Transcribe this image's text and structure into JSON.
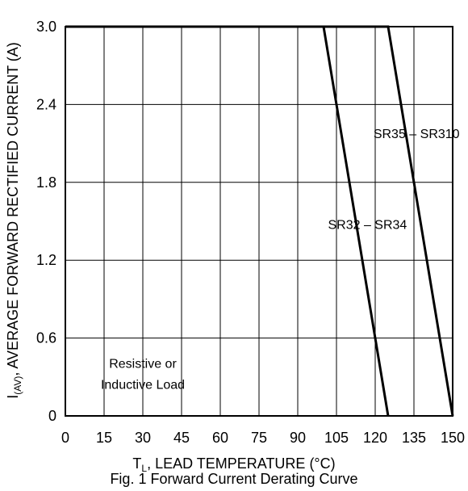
{
  "chart_data": {
    "type": "line",
    "title": "",
    "caption": "Fig. 1 Forward Current Derating Curve",
    "xlabel": {
      "main": "T",
      "sub": "L",
      "rest": ", LEAD TEMPERATURE (°C)"
    },
    "ylabel": {
      "main": "I",
      "sub": "(AV)",
      "rest": ", AVERAGE FORWARD RECTIFIED CURRENT (A)"
    },
    "xlim": [
      0,
      150
    ],
    "ylim": [
      0,
      3.0
    ],
    "x_ticks": [
      "0",
      "15",
      "30",
      "45",
      "60",
      "75",
      "90",
      "105",
      "120",
      "135",
      "150"
    ],
    "y_ticks": [
      "0",
      "0.6",
      "1.2",
      "1.8",
      "2.4",
      "3.0"
    ],
    "grid": true,
    "series": [
      {
        "name": "SR32 – SR34",
        "x": [
          0,
          100,
          125
        ],
        "y": [
          3.0,
          3.0,
          0
        ]
      },
      {
        "name": "SR35 – SR310",
        "x": [
          0,
          125,
          150
        ],
        "y": [
          3.0,
          3.0,
          0
        ]
      }
    ],
    "annotations": [
      {
        "text": "SR35 – SR310",
        "x": 136,
        "y": 2.14
      },
      {
        "text": "SR32 – SR34",
        "x": 117,
        "y": 1.44
      },
      {
        "text": "Resistive or",
        "x": 30,
        "y": 0.37
      },
      {
        "text": "Inductive Load",
        "x": 30,
        "y": 0.21
      }
    ]
  }
}
